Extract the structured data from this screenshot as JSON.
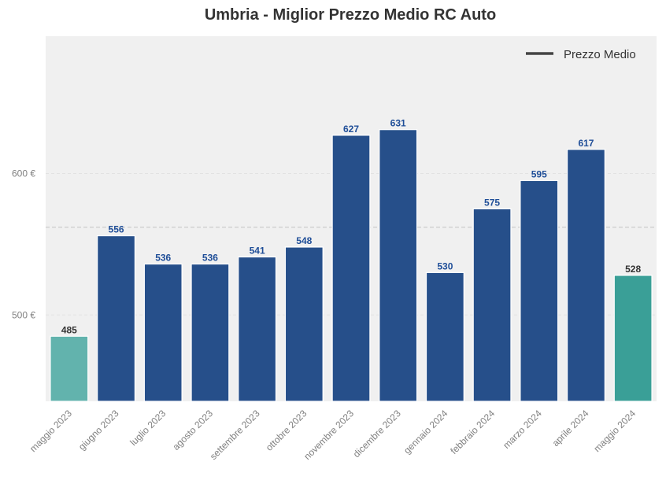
{
  "chart_data": {
    "type": "bar",
    "title": "Umbria - Miglior Prezzo Medio RC Auto",
    "xlabel": "",
    "ylabel": "",
    "categories": [
      "maggio 2023",
      "giugno 2023",
      "luglio 2023",
      "agosto 2023",
      "settembre 2023",
      "ottobre 2023",
      "novembre 2023",
      "dicembre 2023",
      "gennaio 2024",
      "febbraio 2024",
      "marzo 2024",
      "aprile 2024",
      "maggio 2024"
    ],
    "values": [
      485,
      556,
      536,
      536,
      541,
      548,
      627,
      631,
      530,
      575,
      595,
      617,
      528
    ],
    "bar_colors": [
      "#62b3ad",
      "#264f8a",
      "#264f8a",
      "#264f8a",
      "#264f8a",
      "#264f8a",
      "#264f8a",
      "#264f8a",
      "#264f8a",
      "#264f8a",
      "#264f8a",
      "#264f8a",
      "#3a9f97"
    ],
    "label_colors": [
      "#333333",
      "#1f4e98",
      "#1f4e98",
      "#1f4e98",
      "#1f4e98",
      "#1f4e98",
      "#1f4e98",
      "#1f4e98",
      "#1f4e98",
      "#1f4e98",
      "#1f4e98",
      "#1f4e98",
      "#333333"
    ],
    "value_labels": [
      "485",
      "556",
      "536",
      "536",
      "541",
      "548",
      "627",
      "631",
      "530",
      "575",
      "595",
      "617",
      "528"
    ],
    "yticks": [
      500,
      600
    ],
    "ytick_labels": [
      "500 €",
      "600 €"
    ],
    "ylim": [
      439,
      697
    ],
    "reference_line": {
      "value": 562,
      "style": "dashed",
      "color": "#c8c8c8"
    },
    "legend": {
      "label": "Prezzo Medio",
      "placement": "top-right",
      "color": "#444444"
    },
    "grid": true,
    "background": "#f0f0f0"
  }
}
